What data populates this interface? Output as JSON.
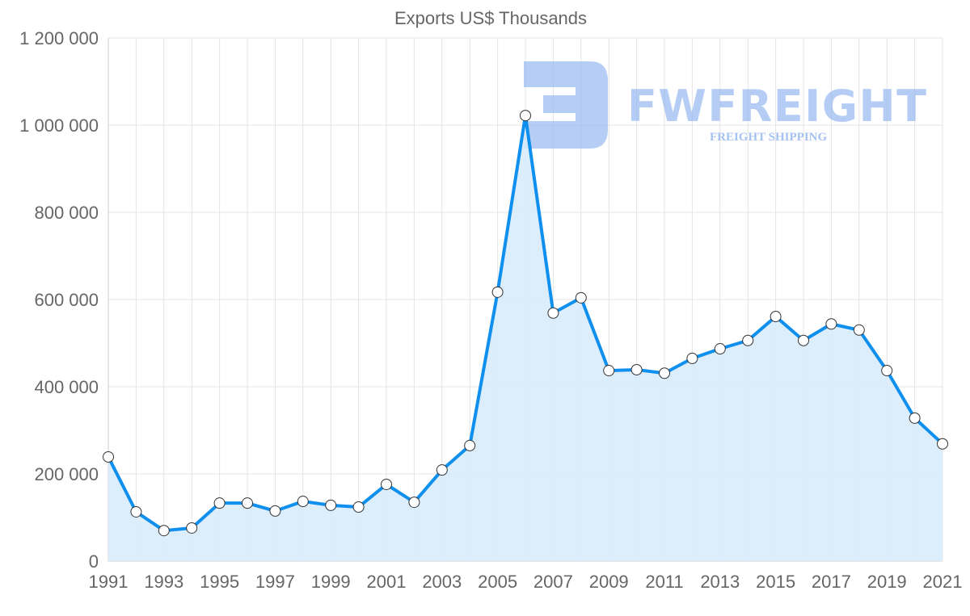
{
  "chart_data": {
    "type": "line",
    "title": "Exports US$ Thousands",
    "xlabel": "",
    "ylabel": "",
    "ylim": [
      0,
      1200000
    ],
    "yticks": [
      "0",
      "200 000",
      "400 000",
      "600 000",
      "800 000",
      "1 000 000",
      "1 200 000"
    ],
    "xticks": [
      "1991",
      "1993",
      "1995",
      "1997",
      "1999",
      "2001",
      "2003",
      "2005",
      "2007",
      "2009",
      "2011",
      "2013",
      "2015",
      "2017",
      "2019",
      "2021"
    ],
    "grid": true,
    "fill": true,
    "series": [
      {
        "name": "Exports",
        "color": "#0f8fee",
        "fill_color": "#d8ebfc",
        "x": [
          1991,
          1992,
          1993,
          1994,
          1995,
          1996,
          1997,
          1998,
          1999,
          2000,
          2001,
          2002,
          2003,
          2004,
          2005,
          2006,
          2007,
          2008,
          2009,
          2010,
          2011,
          2012,
          2013,
          2014,
          2015,
          2016,
          2017,
          2018,
          2019,
          2020,
          2021
        ],
        "values": [
          239000,
          113000,
          70000,
          76000,
          133000,
          133000,
          115000,
          137000,
          128000,
          124000,
          176000,
          135000,
          209000,
          265000,
          617000,
          1022000,
          569000,
          604000,
          437000,
          439000,
          431000,
          465000,
          487000,
          506000,
          561000,
          506000,
          544000,
          530000,
          437000,
          328000,
          269000
        ]
      }
    ]
  },
  "watermark": {
    "brand": "FWFREIGHT",
    "tagline": "FREIGHT SHIPPING"
  }
}
